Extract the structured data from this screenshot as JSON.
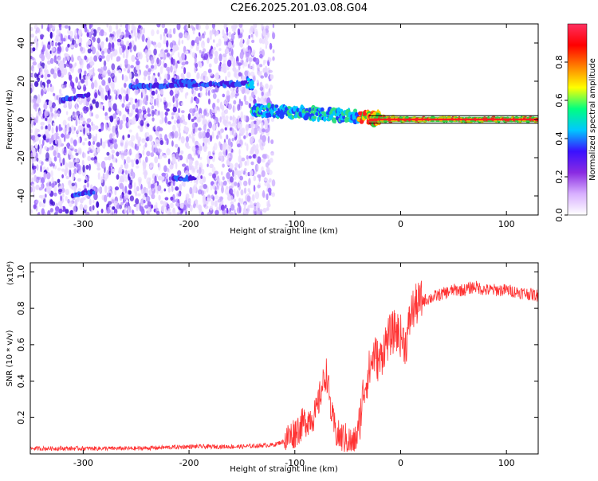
{
  "title": "C2E6.2025.201.03.08.G04",
  "chart_data": [
    {
      "type": "heatmap",
      "name": "spectrogram",
      "xlabel": "Height of straight line (km)",
      "ylabel": "Frequency (Hz)",
      "xlim": [
        -350,
        130
      ],
      "ylim": [
        -50,
        50
      ],
      "xticks": [
        "-300",
        "-200",
        "-100",
        "0",
        "100"
      ],
      "xtick_values": [
        -300,
        -200,
        -100,
        0,
        100
      ],
      "yticks": [
        "-40",
        "-20",
        "0",
        "20",
        "40"
      ],
      "ytick_values": [
        -40,
        -20,
        0,
        20,
        40
      ],
      "colorbar": {
        "label": "Normalized spectral amplitude",
        "range": [
          0.0,
          1.0
        ],
        "ticks": [
          "0.0",
          "0.2",
          "0.4",
          "0.6",
          "0.8"
        ],
        "tick_values": [
          0.0,
          0.2,
          0.4,
          0.6,
          0.8
        ],
        "colors": [
          "#ffffff",
          "#d8b0ff",
          "#8a2be2",
          "#3a10ff",
          "#00c8ff",
          "#00ff80",
          "#ffff00",
          "#ff8000",
          "#ff0000",
          "#ff3060"
        ]
      },
      "noise_region": [
        -350,
        -120
      ],
      "tracks": [
        {
          "x": [
            -320,
            -295
          ],
          "y": [
            10,
            13
          ]
        },
        {
          "x": [
            -255,
            -140
          ],
          "y": [
            17,
            19
          ]
        },
        {
          "x": [
            -215,
            -195
          ],
          "y": [
            20,
            20
          ]
        },
        {
          "x": [
            -310,
            -290
          ],
          "y": [
            -40,
            -38
          ]
        },
        {
          "x": [
            -215,
            -195
          ],
          "y": [
            -31,
            -31
          ]
        },
        {
          "x": [
            -140,
            5
          ],
          "y": [
            5,
            0
          ]
        },
        {
          "x": [
            -30,
            130
          ],
          "y": [
            0,
            0
          ]
        }
      ],
      "grid": false
    },
    {
      "type": "line",
      "name": "snr",
      "xlabel": "Height of straight line (km)",
      "ylabel": "SNR (10 * v/v)",
      "y_multiplier": "(x10⁴)",
      "xlim": [
        -350,
        130
      ],
      "ylim": [
        0,
        1.05
      ],
      "xticks": [
        "-300",
        "-200",
        "-100",
        "0",
        "100"
      ],
      "xtick_values": [
        -300,
        -200,
        -100,
        0,
        100
      ],
      "yticks": [
        "0.2",
        "0.4",
        "0.6",
        "0.8",
        "1.0"
      ],
      "ytick_values": [
        0.2,
        0.4,
        0.6,
        0.8,
        1.0
      ],
      "color": "#ff3333",
      "series": [
        {
          "x": [
            -350,
            -330,
            -300,
            -250,
            -200,
            -150,
            -120,
            -110,
            -100,
            -90,
            -80,
            -75,
            -70,
            -65,
            -60,
            -50,
            -45,
            -40,
            -35,
            -30,
            -25,
            -20,
            -15,
            -10,
            -5,
            0,
            5,
            10,
            15,
            20,
            30,
            40,
            50,
            60,
            70,
            80,
            90,
            100,
            110,
            120,
            130
          ],
          "y": [
            0.03,
            0.03,
            0.03,
            0.03,
            0.04,
            0.04,
            0.05,
            0.07,
            0.12,
            0.18,
            0.22,
            0.35,
            0.45,
            0.2,
            0.1,
            0.08,
            0.05,
            0.12,
            0.35,
            0.45,
            0.55,
            0.5,
            0.6,
            0.65,
            0.68,
            0.65,
            0.6,
            0.78,
            0.82,
            0.84,
            0.86,
            0.88,
            0.9,
            0.9,
            0.92,
            0.9,
            0.9,
            0.9,
            0.89,
            0.88,
            0.87
          ]
        }
      ],
      "grid": false
    }
  ]
}
